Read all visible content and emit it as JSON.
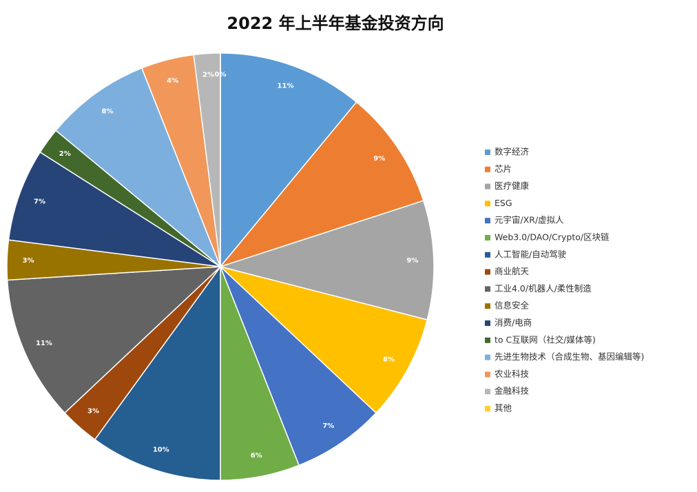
{
  "chart_data": {
    "type": "pie",
    "title": "2022 年上半年基金投资方向",
    "categories": [
      "数字经济",
      "芯片",
      "医疗健康",
      "ESG",
      "元宇宙/XR/虚拟人",
      "Web3.0/DAO/Crypto/区块链",
      "人工智能/自动驾驶",
      "商业航天",
      "工业4.0/机器人/柔性制造",
      "信息安全",
      "消费/电商",
      "to C互联网（社交/媒体等)",
      "先进生物技术（合成生物、基因编辑等)",
      "农业科技",
      "金融科技",
      "其他"
    ],
    "values": [
      11,
      9,
      9,
      8,
      7,
      6,
      10,
      3,
      11,
      3,
      7,
      2,
      8,
      4,
      2,
      0
    ],
    "value_labels": [
      "11%",
      "9%",
      "9%",
      "8%",
      "7%",
      "6%",
      "10%",
      "3%",
      "11%",
      "3%",
      "7%",
      "2%",
      "8%",
      "4%",
      "2%",
      "0%"
    ],
    "colors": [
      "#5b9bd5",
      "#ed7d31",
      "#a5a5a5",
      "#ffc000",
      "#4472c4",
      "#70ad47",
      "#255e91",
      "#9e480e",
      "#636363",
      "#997300",
      "#264478",
      "#43682b",
      "#7cafdd",
      "#f1975a",
      "#b7b7b7",
      "#ffcd33"
    ]
  }
}
